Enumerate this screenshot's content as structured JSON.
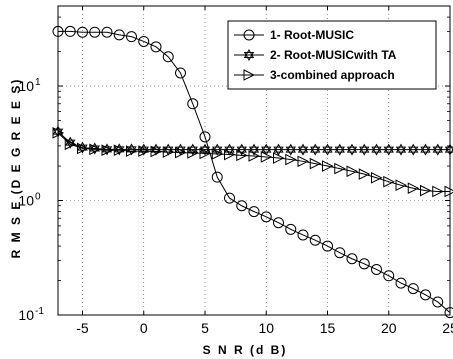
{
  "chart_data": {
    "type": "line",
    "xlabel": "S N R (d B)",
    "ylabel": "R M S E (D E G R E E S)",
    "xlim": [
      -7,
      25
    ],
    "ylim": [
      0.1,
      50
    ],
    "yscale": "log",
    "grid": "dotted",
    "legend_position": "top-right",
    "x_ticks": [
      -5,
      0,
      5,
      10,
      15,
      20,
      25
    ],
    "x_tick_labels": [
      "-5",
      "0",
      "5",
      "10",
      "15",
      "20",
      "25"
    ],
    "y_ticks": [
      0.1,
      1,
      10
    ],
    "y_tick_labels": [
      {
        "base": "10",
        "exp": "-1"
      },
      {
        "base": "10",
        "exp": "0"
      },
      {
        "base": "10",
        "exp": "1"
      }
    ],
    "x": [
      -7,
      -6,
      -5,
      -4,
      -3,
      -2,
      -1,
      0,
      1,
      2,
      3,
      4,
      5,
      6,
      7,
      8,
      9,
      10,
      11,
      12,
      13,
      14,
      15,
      16,
      17,
      18,
      19,
      20,
      21,
      22,
      23,
      24,
      25
    ],
    "series": [
      {
        "name": "1- Root-MUSIC",
        "marker": "circle",
        "values": [
          30,
          30,
          29.5,
          29.5,
          29.5,
          28,
          27,
          24.5,
          22,
          18,
          13,
          7,
          3.6,
          1.6,
          1.05,
          0.9,
          0.8,
          0.72,
          0.64,
          0.56,
          0.5,
          0.45,
          0.4,
          0.35,
          0.31,
          0.28,
          0.25,
          0.22,
          0.19,
          0.17,
          0.15,
          0.13,
          0.105
        ]
      },
      {
        "name": "2- Root-MUSICwith TA",
        "marker": "star",
        "values": [
          4,
          3.2,
          2.9,
          2.85,
          2.8,
          2.8,
          2.8,
          2.78,
          2.78,
          2.78,
          2.78,
          2.78,
          2.78,
          2.78,
          2.78,
          2.78,
          2.78,
          2.78,
          2.78,
          2.78,
          2.78,
          2.78,
          2.78,
          2.78,
          2.78,
          2.78,
          2.78,
          2.78,
          2.78,
          2.78,
          2.78,
          2.78,
          2.78
        ]
      },
      {
        "name": "3-combined approach",
        "marker": "triangle-right",
        "values": [
          3.9,
          3.1,
          2.85,
          2.8,
          2.75,
          2.75,
          2.7,
          2.7,
          2.68,
          2.65,
          2.62,
          2.6,
          2.58,
          2.55,
          2.52,
          2.48,
          2.45,
          2.4,
          2.35,
          2.28,
          2.2,
          2.1,
          2.0,
          1.9,
          1.8,
          1.7,
          1.58,
          1.46,
          1.36,
          1.28,
          1.22,
          1.2,
          1.2
        ]
      }
    ]
  }
}
